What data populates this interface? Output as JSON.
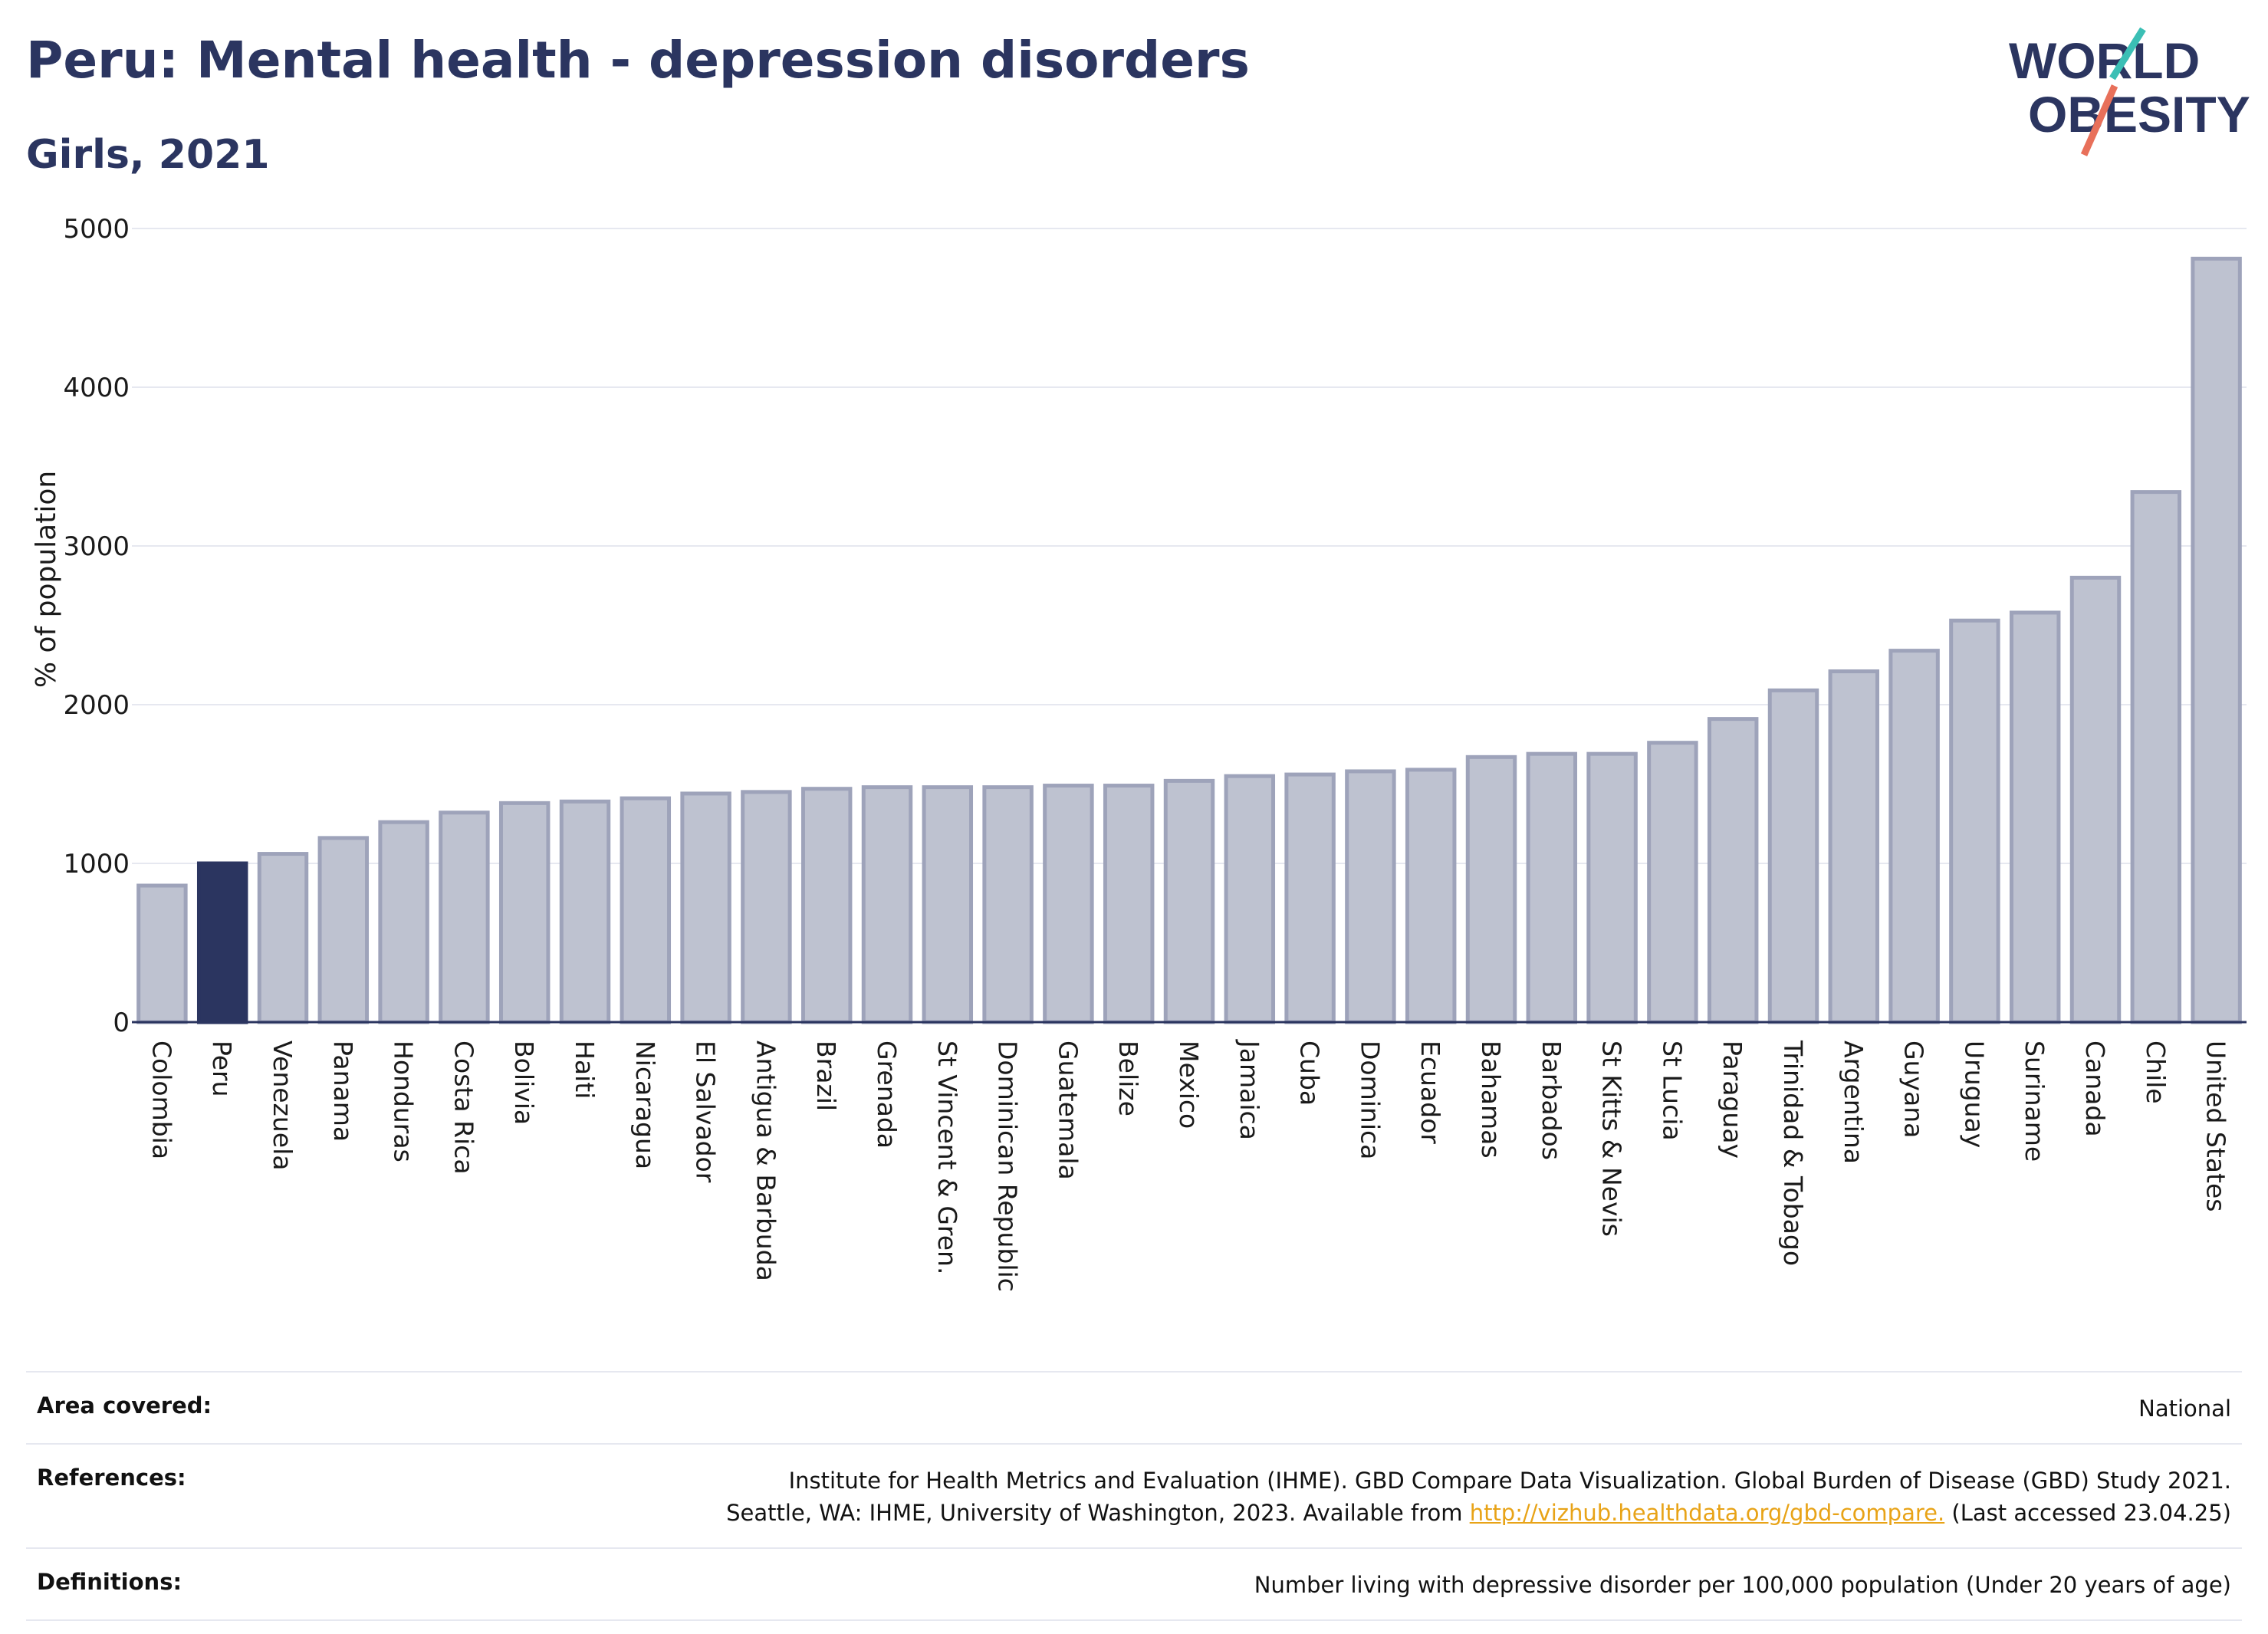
{
  "header": {
    "title": "Peru: Mental health - depression disorders",
    "subtitle": "Girls, 2021"
  },
  "logo": {
    "line1": "WORLD",
    "line2": "OBESITY"
  },
  "colors": {
    "highlight": "#2b3560",
    "bar_fill": "#bec2d0",
    "bar_stroke": "#9ea3ba",
    "text": "#2b3560",
    "link": "#e8a317"
  },
  "chart_data": {
    "type": "bar",
    "title": "Peru: Mental health - depression disorders",
    "subtitle": "Girls, 2021",
    "ylabel": "% of population",
    "xlabel": "",
    "ylim": [
      0,
      5000
    ],
    "yticks": [
      0,
      1000,
      2000,
      3000,
      4000,
      5000
    ],
    "grid": true,
    "highlight": "Peru",
    "categories": [
      "Colombia",
      "Peru",
      "Venezuela",
      "Panama",
      "Honduras",
      "Costa Rica",
      "Bolivia",
      "Haiti",
      "Nicaragua",
      "El Salvador",
      "Antigua & Barbuda",
      "Brazil",
      "Grenada",
      "St Vincent & Gren.",
      "Dominican Republic",
      "Guatemala",
      "Belize",
      "Mexico",
      "Jamaica",
      "Cuba",
      "Dominica",
      "Ecuador",
      "Bahamas",
      "Barbados",
      "St Kitts & Nevis",
      "St Lucia",
      "Paraguay",
      "Trinidad & Tobago",
      "Argentina",
      "Guyana",
      "Uruguay",
      "Suriname",
      "Canada",
      "Chile",
      "United States"
    ],
    "values": [
      860,
      1000,
      1060,
      1160,
      1260,
      1320,
      1380,
      1390,
      1410,
      1440,
      1450,
      1470,
      1480,
      1480,
      1480,
      1490,
      1490,
      1520,
      1550,
      1560,
      1580,
      1590,
      1670,
      1690,
      1690,
      1760,
      1910,
      2090,
      2210,
      2340,
      2530,
      2580,
      2800,
      3340,
      4810
    ]
  },
  "footer": {
    "area": {
      "label": "Area covered:",
      "value": "National"
    },
    "references": {
      "label": "References:",
      "line1": "Institute for Health Metrics and Evaluation (IHME). GBD Compare Data Visualization. Global Burden of Disease (GBD) Study 2021.",
      "line2_pre": "Seattle, WA: IHME, University of Washington, 2023. Available from ",
      "link": "http://vizhub.healthdata.org/gbd-compare.",
      "line2_post": " (Last accessed 23.04.25)"
    },
    "definitions": {
      "label": "Definitions:",
      "value": "Number living with depressive disorder per 100,000 population (Under 20 years of age)"
    }
  }
}
